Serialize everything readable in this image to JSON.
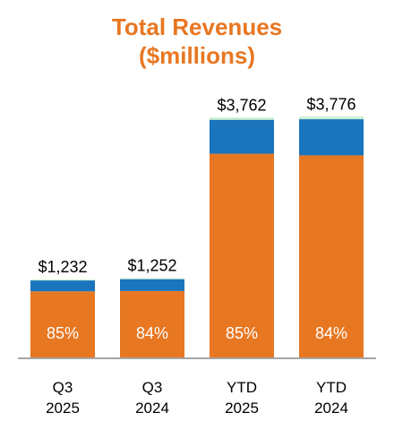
{
  "chart_data": {
    "type": "bar",
    "stacked": true,
    "title_lines": [
      "Total Revenues",
      "($millions)"
    ],
    "categories": [
      {
        "line1": "Q3",
        "line2": "2025"
      },
      {
        "line1": "Q3",
        "line2": "2024"
      },
      {
        "line1": "YTD",
        "line2": "2025"
      },
      {
        "line1": "YTD",
        "line2": "2024"
      }
    ],
    "totals": [
      1232,
      1252,
      3762,
      3776
    ],
    "total_labels": [
      "$1,232",
      "$1,252",
      "$3,762",
      "$3,776"
    ],
    "segment_labels": [
      "85%",
      "84%",
      "85%",
      "84%"
    ],
    "series": [
      {
        "values": [
          1047,
          1052,
          3198,
          3172
        ],
        "color": "#E87722"
      },
      {
        "values": [
          170,
          185,
          530,
          565
        ],
        "color": "#1B75BC"
      },
      {
        "values": [
          15,
          15,
          34,
          39
        ],
        "color": "#C6EFCE"
      }
    ],
    "ylim": [
      0,
      4200
    ],
    "grid": false,
    "legend": "none",
    "axis_color": "#A6A6A6"
  }
}
